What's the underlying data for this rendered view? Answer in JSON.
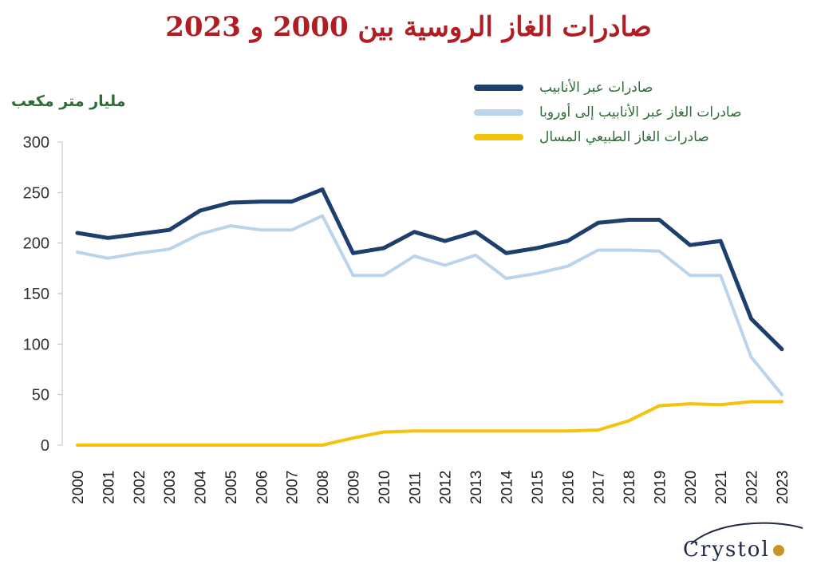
{
  "title": "صادرات الغاز الروسية بين 2000 و 2023",
  "logo": {
    "text": "Crystol",
    "alt": "crystol-logo"
  },
  "chart_data": {
    "type": "line",
    "title": "صادرات الغاز الروسية بين 2000 و 2023",
    "ylabel": "مليار متر مكعب",
    "xlabel": "",
    "ylim": [
      0,
      300
    ],
    "yticks": [
      0,
      50,
      100,
      150,
      200,
      250,
      300
    ],
    "grid": false,
    "legend_position": "top-right",
    "categories": [
      "2000",
      "2001",
      "2002",
      "2003",
      "2004",
      "2005",
      "2006",
      "2007",
      "2008",
      "2009",
      "2010",
      "2011",
      "2012",
      "2013",
      "2014",
      "2015",
      "2016",
      "2017",
      "2018",
      "2019",
      "2020",
      "2021",
      "2022",
      "2023"
    ],
    "series": [
      {
        "name": "صادرات عبر الأنابيب",
        "color": "#1c3f6e",
        "values": [
          210,
          205,
          209,
          213,
          232,
          240,
          241,
          241,
          253,
          190,
          195,
          211,
          202,
          211,
          190,
          195,
          202,
          220,
          223,
          223,
          198,
          202,
          125,
          95
        ]
      },
      {
        "name": "صادرات الغاز عبر الأنابيب إلى أوروبا",
        "color": "#bcd3ec",
        "values": [
          191,
          185,
          190,
          194,
          209,
          217,
          213,
          213,
          227,
          168,
          168,
          187,
          178,
          188,
          165,
          170,
          177,
          193,
          193,
          192,
          168,
          168,
          87,
          50
        ]
      },
      {
        "name": "صادرات الغاز الطبيعي المسال",
        "color": "#f4c20d",
        "values": [
          0,
          0,
          0,
          0,
          0,
          0,
          0,
          0,
          0,
          7,
          13,
          14,
          14,
          14,
          14,
          14,
          14,
          15,
          24,
          39,
          41,
          40,
          43,
          43
        ]
      }
    ]
  }
}
